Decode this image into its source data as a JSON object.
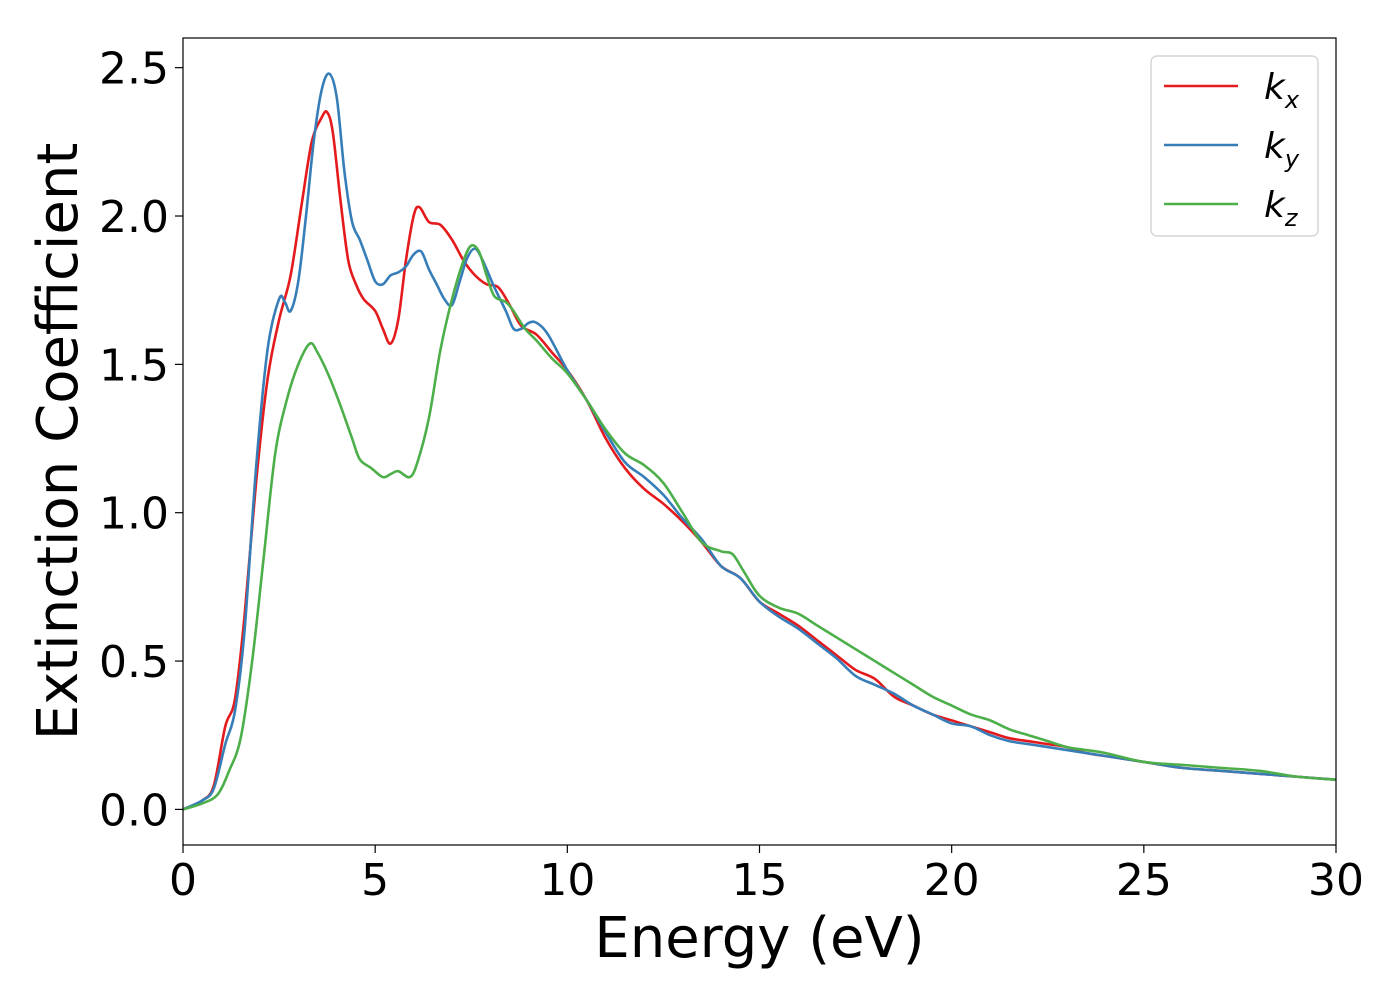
{
  "chart_data": {
    "type": "line",
    "title": "",
    "xlabel": "Energy (eV)",
    "ylabel": "Extinction Coefficient",
    "xlim": [
      0,
      30
    ],
    "ylim": [
      -0.12,
      2.6
    ],
    "x_ticks": [
      0,
      5,
      10,
      15,
      20,
      25,
      30
    ],
    "y_ticks": [
      0.0,
      0.5,
      1.0,
      1.5,
      2.0,
      2.5
    ],
    "x_tick_labels": [
      "0",
      "5",
      "10",
      "15",
      "20",
      "25",
      "30"
    ],
    "y_tick_labels": [
      "0.0",
      "0.5",
      "1.0",
      "1.5",
      "2.0",
      "2.5"
    ],
    "grid": false,
    "legend_position": "top-right",
    "series": [
      {
        "name": "k_x",
        "label_base": "k",
        "label_sub": "x",
        "color": "#e41a1c",
        "points": [
          [
            0,
            0
          ],
          [
            0.5,
            0.03
          ],
          [
            0.8,
            0.08
          ],
          [
            1.1,
            0.28
          ],
          [
            1.35,
            0.37
          ],
          [
            1.6,
            0.65
          ],
          [
            1.9,
            1.1
          ],
          [
            2.2,
            1.45
          ],
          [
            2.5,
            1.65
          ],
          [
            2.8,
            1.8
          ],
          [
            3.1,
            2.05
          ],
          [
            3.35,
            2.25
          ],
          [
            3.6,
            2.33
          ],
          [
            3.75,
            2.35
          ],
          [
            3.9,
            2.28
          ],
          [
            4.1,
            2.05
          ],
          [
            4.3,
            1.85
          ],
          [
            4.5,
            1.77
          ],
          [
            4.7,
            1.72
          ],
          [
            5.0,
            1.68
          ],
          [
            5.2,
            1.62
          ],
          [
            5.4,
            1.57
          ],
          [
            5.6,
            1.65
          ],
          [
            5.8,
            1.85
          ],
          [
            6.0,
            2.0
          ],
          [
            6.15,
            2.03
          ],
          [
            6.4,
            1.98
          ],
          [
            6.7,
            1.97
          ],
          [
            7.0,
            1.92
          ],
          [
            7.3,
            1.85
          ],
          [
            7.6,
            1.8
          ],
          [
            7.9,
            1.77
          ],
          [
            8.2,
            1.76
          ],
          [
            8.5,
            1.7
          ],
          [
            8.8,
            1.63
          ],
          [
            9.2,
            1.6
          ],
          [
            9.6,
            1.54
          ],
          [
            10.0,
            1.48
          ],
          [
            10.5,
            1.38
          ],
          [
            11.0,
            1.25
          ],
          [
            11.5,
            1.15
          ],
          [
            12.0,
            1.08
          ],
          [
            12.5,
            1.03
          ],
          [
            13.0,
            0.97
          ],
          [
            13.5,
            0.9
          ],
          [
            14.0,
            0.82
          ],
          [
            14.5,
            0.78
          ],
          [
            15.0,
            0.7
          ],
          [
            15.5,
            0.66
          ],
          [
            16.0,
            0.62
          ],
          [
            16.5,
            0.57
          ],
          [
            17.0,
            0.52
          ],
          [
            17.5,
            0.47
          ],
          [
            18.0,
            0.44
          ],
          [
            18.5,
            0.38
          ],
          [
            19.0,
            0.35
          ],
          [
            19.5,
            0.32
          ],
          [
            20.0,
            0.3
          ],
          [
            20.5,
            0.28
          ],
          [
            21.0,
            0.26
          ],
          [
            21.5,
            0.24
          ],
          [
            22.0,
            0.23
          ],
          [
            22.5,
            0.22
          ],
          [
            23.0,
            0.21
          ],
          [
            23.5,
            0.19
          ],
          [
            24.0,
            0.18
          ],
          [
            25.0,
            0.16
          ],
          [
            26.0,
            0.14
          ],
          [
            27.0,
            0.13
          ],
          [
            28.0,
            0.12
          ],
          [
            29.0,
            0.11
          ],
          [
            30.0,
            0.1
          ]
        ]
      },
      {
        "name": "k_y",
        "label_base": "k",
        "label_sub": "y",
        "color": "#377eb8",
        "points": [
          [
            0,
            0
          ],
          [
            0.5,
            0.03
          ],
          [
            0.8,
            0.07
          ],
          [
            1.1,
            0.22
          ],
          [
            1.35,
            0.33
          ],
          [
            1.6,
            0.6
          ],
          [
            1.9,
            1.15
          ],
          [
            2.2,
            1.55
          ],
          [
            2.5,
            1.72
          ],
          [
            2.65,
            1.71
          ],
          [
            2.8,
            1.68
          ],
          [
            3.0,
            1.78
          ],
          [
            3.2,
            2.0
          ],
          [
            3.4,
            2.25
          ],
          [
            3.6,
            2.42
          ],
          [
            3.8,
            2.48
          ],
          [
            4.0,
            2.4
          ],
          [
            4.2,
            2.15
          ],
          [
            4.4,
            1.98
          ],
          [
            4.6,
            1.92
          ],
          [
            4.8,
            1.85
          ],
          [
            5.0,
            1.78
          ],
          [
            5.2,
            1.77
          ],
          [
            5.4,
            1.8
          ],
          [
            5.6,
            1.81
          ],
          [
            5.8,
            1.83
          ],
          [
            6.0,
            1.87
          ],
          [
            6.2,
            1.88
          ],
          [
            6.4,
            1.82
          ],
          [
            6.6,
            1.77
          ],
          [
            6.8,
            1.72
          ],
          [
            7.0,
            1.7
          ],
          [
            7.2,
            1.78
          ],
          [
            7.4,
            1.86
          ],
          [
            7.6,
            1.89
          ],
          [
            7.8,
            1.85
          ],
          [
            8.1,
            1.76
          ],
          [
            8.4,
            1.68
          ],
          [
            8.6,
            1.62
          ],
          [
            8.8,
            1.62
          ],
          [
            9.0,
            1.64
          ],
          [
            9.2,
            1.64
          ],
          [
            9.5,
            1.6
          ],
          [
            10.0,
            1.48
          ],
          [
            10.5,
            1.38
          ],
          [
            11.0,
            1.27
          ],
          [
            11.5,
            1.17
          ],
          [
            12.0,
            1.12
          ],
          [
            12.5,
            1.06
          ],
          [
            13.0,
            0.98
          ],
          [
            13.5,
            0.91
          ],
          [
            14.0,
            0.82
          ],
          [
            14.5,
            0.78
          ],
          [
            15.0,
            0.7
          ],
          [
            15.5,
            0.65
          ],
          [
            16.0,
            0.61
          ],
          [
            16.5,
            0.56
          ],
          [
            17.0,
            0.51
          ],
          [
            17.5,
            0.45
          ],
          [
            18.0,
            0.42
          ],
          [
            18.5,
            0.39
          ],
          [
            19.0,
            0.35
          ],
          [
            19.5,
            0.32
          ],
          [
            20.0,
            0.29
          ],
          [
            20.5,
            0.28
          ],
          [
            21.0,
            0.25
          ],
          [
            21.5,
            0.23
          ],
          [
            22.0,
            0.22
          ],
          [
            22.5,
            0.21
          ],
          [
            23.0,
            0.2
          ],
          [
            23.5,
            0.19
          ],
          [
            24.0,
            0.18
          ],
          [
            25.0,
            0.16
          ],
          [
            26.0,
            0.14
          ],
          [
            27.0,
            0.13
          ],
          [
            28.0,
            0.12
          ],
          [
            29.0,
            0.11
          ],
          [
            30.0,
            0.1
          ]
        ]
      },
      {
        "name": "k_z",
        "label_base": "k",
        "label_sub": "z",
        "color": "#4daf4a",
        "points": [
          [
            0,
            0
          ],
          [
            0.5,
            0.02
          ],
          [
            0.9,
            0.05
          ],
          [
            1.2,
            0.13
          ],
          [
            1.5,
            0.24
          ],
          [
            1.8,
            0.5
          ],
          [
            2.1,
            0.85
          ],
          [
            2.4,
            1.2
          ],
          [
            2.7,
            1.38
          ],
          [
            3.0,
            1.5
          ],
          [
            3.3,
            1.57
          ],
          [
            3.5,
            1.54
          ],
          [
            3.8,
            1.46
          ],
          [
            4.1,
            1.36
          ],
          [
            4.4,
            1.25
          ],
          [
            4.6,
            1.18
          ],
          [
            4.9,
            1.15
          ],
          [
            5.2,
            1.12
          ],
          [
            5.4,
            1.13
          ],
          [
            5.6,
            1.14
          ],
          [
            5.9,
            1.12
          ],
          [
            6.1,
            1.17
          ],
          [
            6.4,
            1.32
          ],
          [
            6.7,
            1.55
          ],
          [
            7.0,
            1.72
          ],
          [
            7.3,
            1.85
          ],
          [
            7.5,
            1.9
          ],
          [
            7.7,
            1.88
          ],
          [
            7.9,
            1.8
          ],
          [
            8.1,
            1.73
          ],
          [
            8.4,
            1.71
          ],
          [
            8.6,
            1.68
          ],
          [
            8.9,
            1.62
          ],
          [
            9.2,
            1.58
          ],
          [
            9.6,
            1.52
          ],
          [
            10.0,
            1.47
          ],
          [
            10.5,
            1.38
          ],
          [
            11.0,
            1.28
          ],
          [
            11.5,
            1.2
          ],
          [
            12.0,
            1.16
          ],
          [
            12.5,
            1.1
          ],
          [
            13.0,
            1.0
          ],
          [
            13.5,
            0.9
          ],
          [
            14.0,
            0.87
          ],
          [
            14.3,
            0.86
          ],
          [
            14.6,
            0.8
          ],
          [
            15.0,
            0.72
          ],
          [
            15.5,
            0.68
          ],
          [
            16.0,
            0.66
          ],
          [
            16.5,
            0.62
          ],
          [
            17.0,
            0.58
          ],
          [
            17.5,
            0.54
          ],
          [
            18.0,
            0.5
          ],
          [
            18.5,
            0.46
          ],
          [
            19.0,
            0.42
          ],
          [
            19.5,
            0.38
          ],
          [
            20.0,
            0.35
          ],
          [
            20.5,
            0.32
          ],
          [
            21.0,
            0.3
          ],
          [
            21.5,
            0.27
          ],
          [
            22.0,
            0.25
          ],
          [
            22.5,
            0.23
          ],
          [
            23.0,
            0.21
          ],
          [
            23.5,
            0.2
          ],
          [
            24.0,
            0.19
          ],
          [
            25.0,
            0.16
          ],
          [
            26.0,
            0.15
          ],
          [
            27.0,
            0.14
          ],
          [
            28.0,
            0.13
          ],
          [
            29.0,
            0.11
          ],
          [
            30.0,
            0.1
          ]
        ]
      }
    ]
  }
}
